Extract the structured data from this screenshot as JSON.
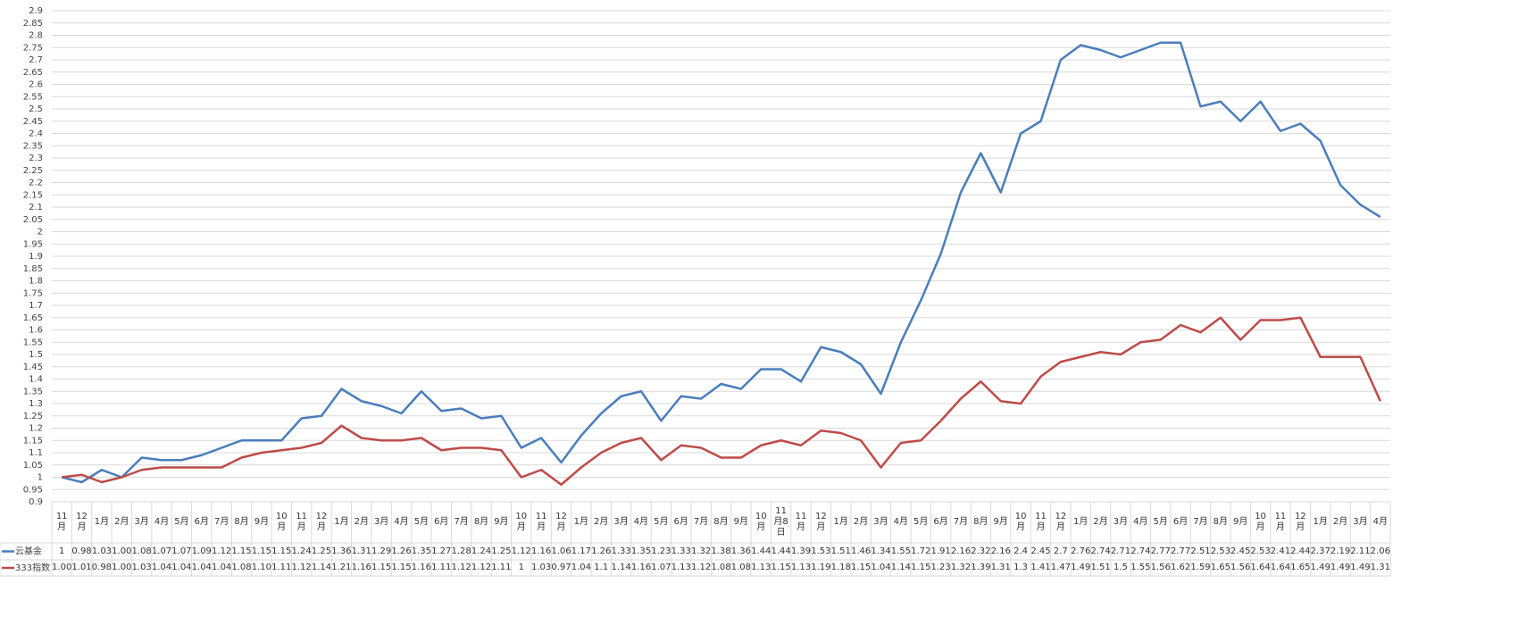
{
  "chart_data": {
    "type": "line",
    "categories": [
      "11月",
      "12月",
      "1月",
      "2月",
      "3月",
      "4月",
      "5月",
      "6月",
      "7月",
      "8月",
      "9月",
      "10月",
      "11月",
      "12月",
      "1月",
      "2月",
      "3月",
      "4月",
      "5月",
      "6月",
      "7月",
      "8月",
      "9月",
      "10月",
      "11月",
      "12月",
      "1月",
      "2月",
      "3月",
      "4月",
      "5月",
      "6月",
      "7月",
      "8月",
      "9月",
      "10月",
      "11月8日",
      "11月",
      "12月",
      "1月",
      "2月",
      "3月",
      "4月",
      "5月",
      "6月",
      "7月",
      "8月",
      "9月",
      "10月",
      "11月",
      "12月",
      "1月",
      "2月",
      "3月",
      "4月",
      "5月",
      "6月",
      "7月",
      "8月",
      "9月",
      "10月",
      "11月",
      "12月",
      "1月",
      "2月",
      "3月",
      "4月"
    ],
    "series": [
      {
        "name": "云基金",
        "color": "#4a7ebb",
        "values": [
          1,
          0.98,
          1.03,
          1.0,
          1.08,
          1.07,
          1.07,
          1.09,
          1.12,
          1.15,
          1.15,
          1.15,
          1.24,
          1.25,
          1.36,
          1.31,
          1.29,
          1.26,
          1.35,
          1.27,
          1.28,
          1.24,
          1.25,
          1.12,
          1.16,
          1.06,
          1.17,
          1.26,
          1.33,
          1.35,
          1.23,
          1.33,
          1.32,
          1.38,
          1.36,
          1.44,
          1.44,
          1.39,
          1.53,
          1.51,
          1.46,
          1.34,
          1.55,
          1.72,
          1.91,
          2.16,
          2.32,
          2.16,
          2.4,
          2.45,
          2.7,
          2.76,
          2.74,
          2.71,
          2.74,
          2.77,
          2.77,
          2.51,
          2.53,
          2.45,
          2.53,
          2.41,
          2.44,
          2.37,
          2.19,
          2.11,
          2.06
        ],
        "value_labels": [
          "1",
          "0.98",
          "1.03",
          "1.00",
          "1.08",
          "1.07",
          "1.07",
          "1.09",
          "1.12",
          "1.15",
          "1.15",
          "1.15",
          "1.24",
          "1.25",
          "1.36",
          "1.31",
          "1.29",
          "1.26",
          "1.35",
          "1.27",
          "1.28",
          "1.24",
          "1.25",
          "1.12",
          "1.16",
          "1.06",
          "1.17",
          "1.26",
          "1.33",
          "1.35",
          "1.23",
          "1.33",
          "1.32",
          "1.38",
          "1.36",
          "1.44",
          "1.44",
          "1.39",
          "1.53",
          "1.51",
          "1.46",
          "1.34",
          "1.55",
          "1.72",
          "1.91",
          "2.16",
          "2.32",
          "2.16",
          "2.4",
          "2.45",
          "2.7",
          "2.76",
          "2.74",
          "2.71",
          "2.74",
          "2.77",
          "2.77",
          "2.51",
          "2.53",
          "2.45",
          "2.53",
          "2.41",
          "2.44",
          "2.37",
          "2.19",
          "2.11",
          "2.06"
        ]
      },
      {
        "name": "333指数",
        "color": "#be4b48",
        "values": [
          1.0,
          1.01,
          0.98,
          1.0,
          1.03,
          1.04,
          1.04,
          1.04,
          1.04,
          1.08,
          1.1,
          1.11,
          1.12,
          1.14,
          1.21,
          1.16,
          1.15,
          1.15,
          1.16,
          1.11,
          1.12,
          1.12,
          1.11,
          1,
          1.03,
          0.97,
          1.04,
          1.1,
          1.14,
          1.16,
          1.07,
          1.13,
          1.12,
          1.08,
          1.08,
          1.13,
          1.15,
          1.13,
          1.19,
          1.18,
          1.15,
          1.04,
          1.14,
          1.15,
          1.23,
          1.32,
          1.39,
          1.31,
          1.3,
          1.41,
          1.47,
          1.49,
          1.51,
          1.5,
          1.55,
          1.56,
          1.62,
          1.59,
          1.65,
          1.56,
          1.64,
          1.64,
          1.65,
          1.49,
          1.49,
          1.49,
          1.31
        ],
        "value_labels": [
          "1.00",
          "1.01",
          "0.98",
          "1.00",
          "1.03",
          "1.04",
          "1.04",
          "1.04",
          "1.04",
          "1.08",
          "1.10",
          "1.11",
          "1.12",
          "1.14",
          "1.21",
          "1.16",
          "1.15",
          "1.15",
          "1.16",
          "1.11",
          "1.12",
          "1.12",
          "1.11",
          "1",
          "1.03",
          "0.97",
          "1.04",
          "1.1",
          "1.14",
          "1.16",
          "1.07",
          "1.13",
          "1.12",
          "1.08",
          "1.08",
          "1.13",
          "1.15",
          "1.13",
          "1.19",
          "1.18",
          "1.15",
          "1.04",
          "1.14",
          "1.15",
          "1.23",
          "1.32",
          "1.39",
          "1.31",
          "1.3",
          "1.41",
          "1.47",
          "1.49",
          "1.51",
          "1.5",
          "1.55",
          "1.56",
          "1.62",
          "1.59",
          "1.65",
          "1.56",
          "1.64",
          "1.64",
          "1.65",
          "1.49",
          "1.49",
          "1.49",
          "1.31"
        ]
      }
    ],
    "ylim": [
      0.9,
      2.9
    ],
    "yticks": [
      0.9,
      0.95,
      1,
      1.05,
      1.1,
      1.15,
      1.2,
      1.25,
      1.3,
      1.35,
      1.4,
      1.45,
      1.5,
      1.55,
      1.6,
      1.65,
      1.7,
      1.75,
      1.8,
      1.85,
      1.9,
      1.95,
      2,
      2.05,
      2.1,
      2.15,
      2.2,
      2.25,
      2.3,
      2.35,
      2.4,
      2.45,
      2.5,
      2.55,
      2.6,
      2.65,
      2.7,
      2.75,
      2.8,
      2.85,
      2.9
    ],
    "grid": true
  }
}
